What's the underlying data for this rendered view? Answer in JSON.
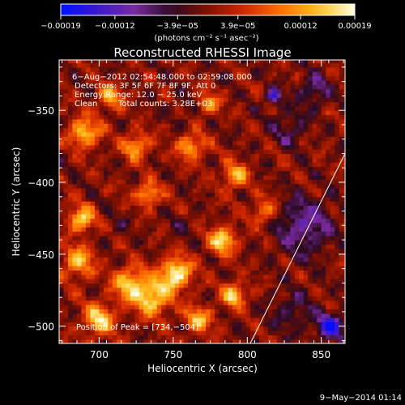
{
  "chart_data": {
    "type": "heatmap",
    "title": "Reconstructed RHESSI Image",
    "xlabel": "Heliocentric X (arcsec)",
    "ylabel": "Heliocentric Y (arcsec)",
    "xlim": [
      673,
      866
    ],
    "ylim": [
      -512,
      -315
    ],
    "x_ticks": [
      700,
      750,
      800,
      850
    ],
    "x_tick_labels": [
      "700",
      "750",
      "800",
      "850"
    ],
    "y_ticks": [
      -350,
      -400,
      -450,
      -500
    ],
    "y_tick_labels": [
      "−350",
      "−400",
      "−450",
      "−500"
    ],
    "colorbar": {
      "range": [
        -0.00019,
        0.00019
      ],
      "ticks": [
        -0.00019,
        -0.00012,
        -3.9e-05,
        3.9e-05,
        0.00012,
        0.00019
      ],
      "tick_labels": [
        "−0.00019",
        "−0.00012",
        "−3.9e−05",
        "3.9e−05",
        "0.00012",
        "0.00019"
      ],
      "unit_label": "(photons cm⁻² s⁻¹ asec⁻²)",
      "colors": [
        "#0010ff",
        "#3a18d0",
        "#7a2aa0",
        "#2a0a20",
        "#801000",
        "#d02800",
        "#ff7000",
        "#ffc020",
        "#ffffe0"
      ]
    },
    "annotations": [
      "6−Aug−2012 02:54:48.000 to 02:59:08.000",
      "Detectors: 3F 5F 6F 7F 8F 9F, Att 0",
      "Energy Range: 12.0 − 25.0 keV",
      "Clean",
      "Total counts: 3.28E+03"
    ],
    "peak_label": "Position of Peak = [734,−504]",
    "limb_line": {
      "x": [
        802,
        866
      ],
      "y": [
        -512,
        -380
      ]
    },
    "sources": [
      {
        "x": 752,
        "y": -463,
        "v": 0.00019,
        "s": 12
      },
      {
        "x": 736,
        "y": -480,
        "v": 0.00017,
        "s": 14
      },
      {
        "x": 720,
        "y": -470,
        "v": 0.00014,
        "s": 13
      },
      {
        "x": 700,
        "y": -495,
        "v": 0.00016,
        "s": 12
      },
      {
        "x": 686,
        "y": -455,
        "v": 0.00014,
        "s": 12
      },
      {
        "x": 688,
        "y": -425,
        "v": 0.00016,
        "s": 10
      },
      {
        "x": 690,
        "y": -365,
        "v": 0.00015,
        "s": 12
      },
      {
        "x": 708,
        "y": -340,
        "v": 0.00012,
        "s": 10
      },
      {
        "x": 725,
        "y": -375,
        "v": 0.00013,
        "s": 10
      },
      {
        "x": 733,
        "y": -408,
        "v": 0.00014,
        "s": 9
      },
      {
        "x": 762,
        "y": -375,
        "v": 0.00014,
        "s": 10
      },
      {
        "x": 773,
        "y": -345,
        "v": 0.00012,
        "s": 9
      },
      {
        "x": 792,
        "y": -395,
        "v": 0.00013,
        "s": 10
      },
      {
        "x": 783,
        "y": -440,
        "v": 0.00017,
        "s": 10
      },
      {
        "x": 767,
        "y": -495,
        "v": 0.00014,
        "s": 10
      },
      {
        "x": 791,
        "y": -478,
        "v": 0.00016,
        "s": 9
      },
      {
        "x": 811,
        "y": -420,
        "v": 0.00011,
        "s": 10
      },
      {
        "x": 828,
        "y": -362,
        "v": -6e-05,
        "s": 14
      },
      {
        "x": 845,
        "y": -335,
        "v": -8e-05,
        "s": 12
      },
      {
        "x": 838,
        "y": -430,
        "v": -0.0001,
        "s": 22
      },
      {
        "x": 830,
        "y": -490,
        "v": -6e-05,
        "s": 16
      },
      {
        "x": 760,
        "y": -350,
        "v": -3e-05,
        "s": 12
      },
      {
        "x": 714,
        "y": -430,
        "v": -3e-05,
        "s": 10
      },
      {
        "x": 755,
        "y": -430,
        "v": -3e-05,
        "s": 10
      },
      {
        "x": 856,
        "y": -500,
        "v": -0.00016,
        "s": 10
      },
      {
        "x": 818,
        "y": -340,
        "v": -0.00014,
        "s": 6
      }
    ],
    "noise_amplitude": 3.5e-05,
    "background_level": 0.0,
    "pixel_size": 3
  },
  "footer_date": "9−May−2014 01:14"
}
